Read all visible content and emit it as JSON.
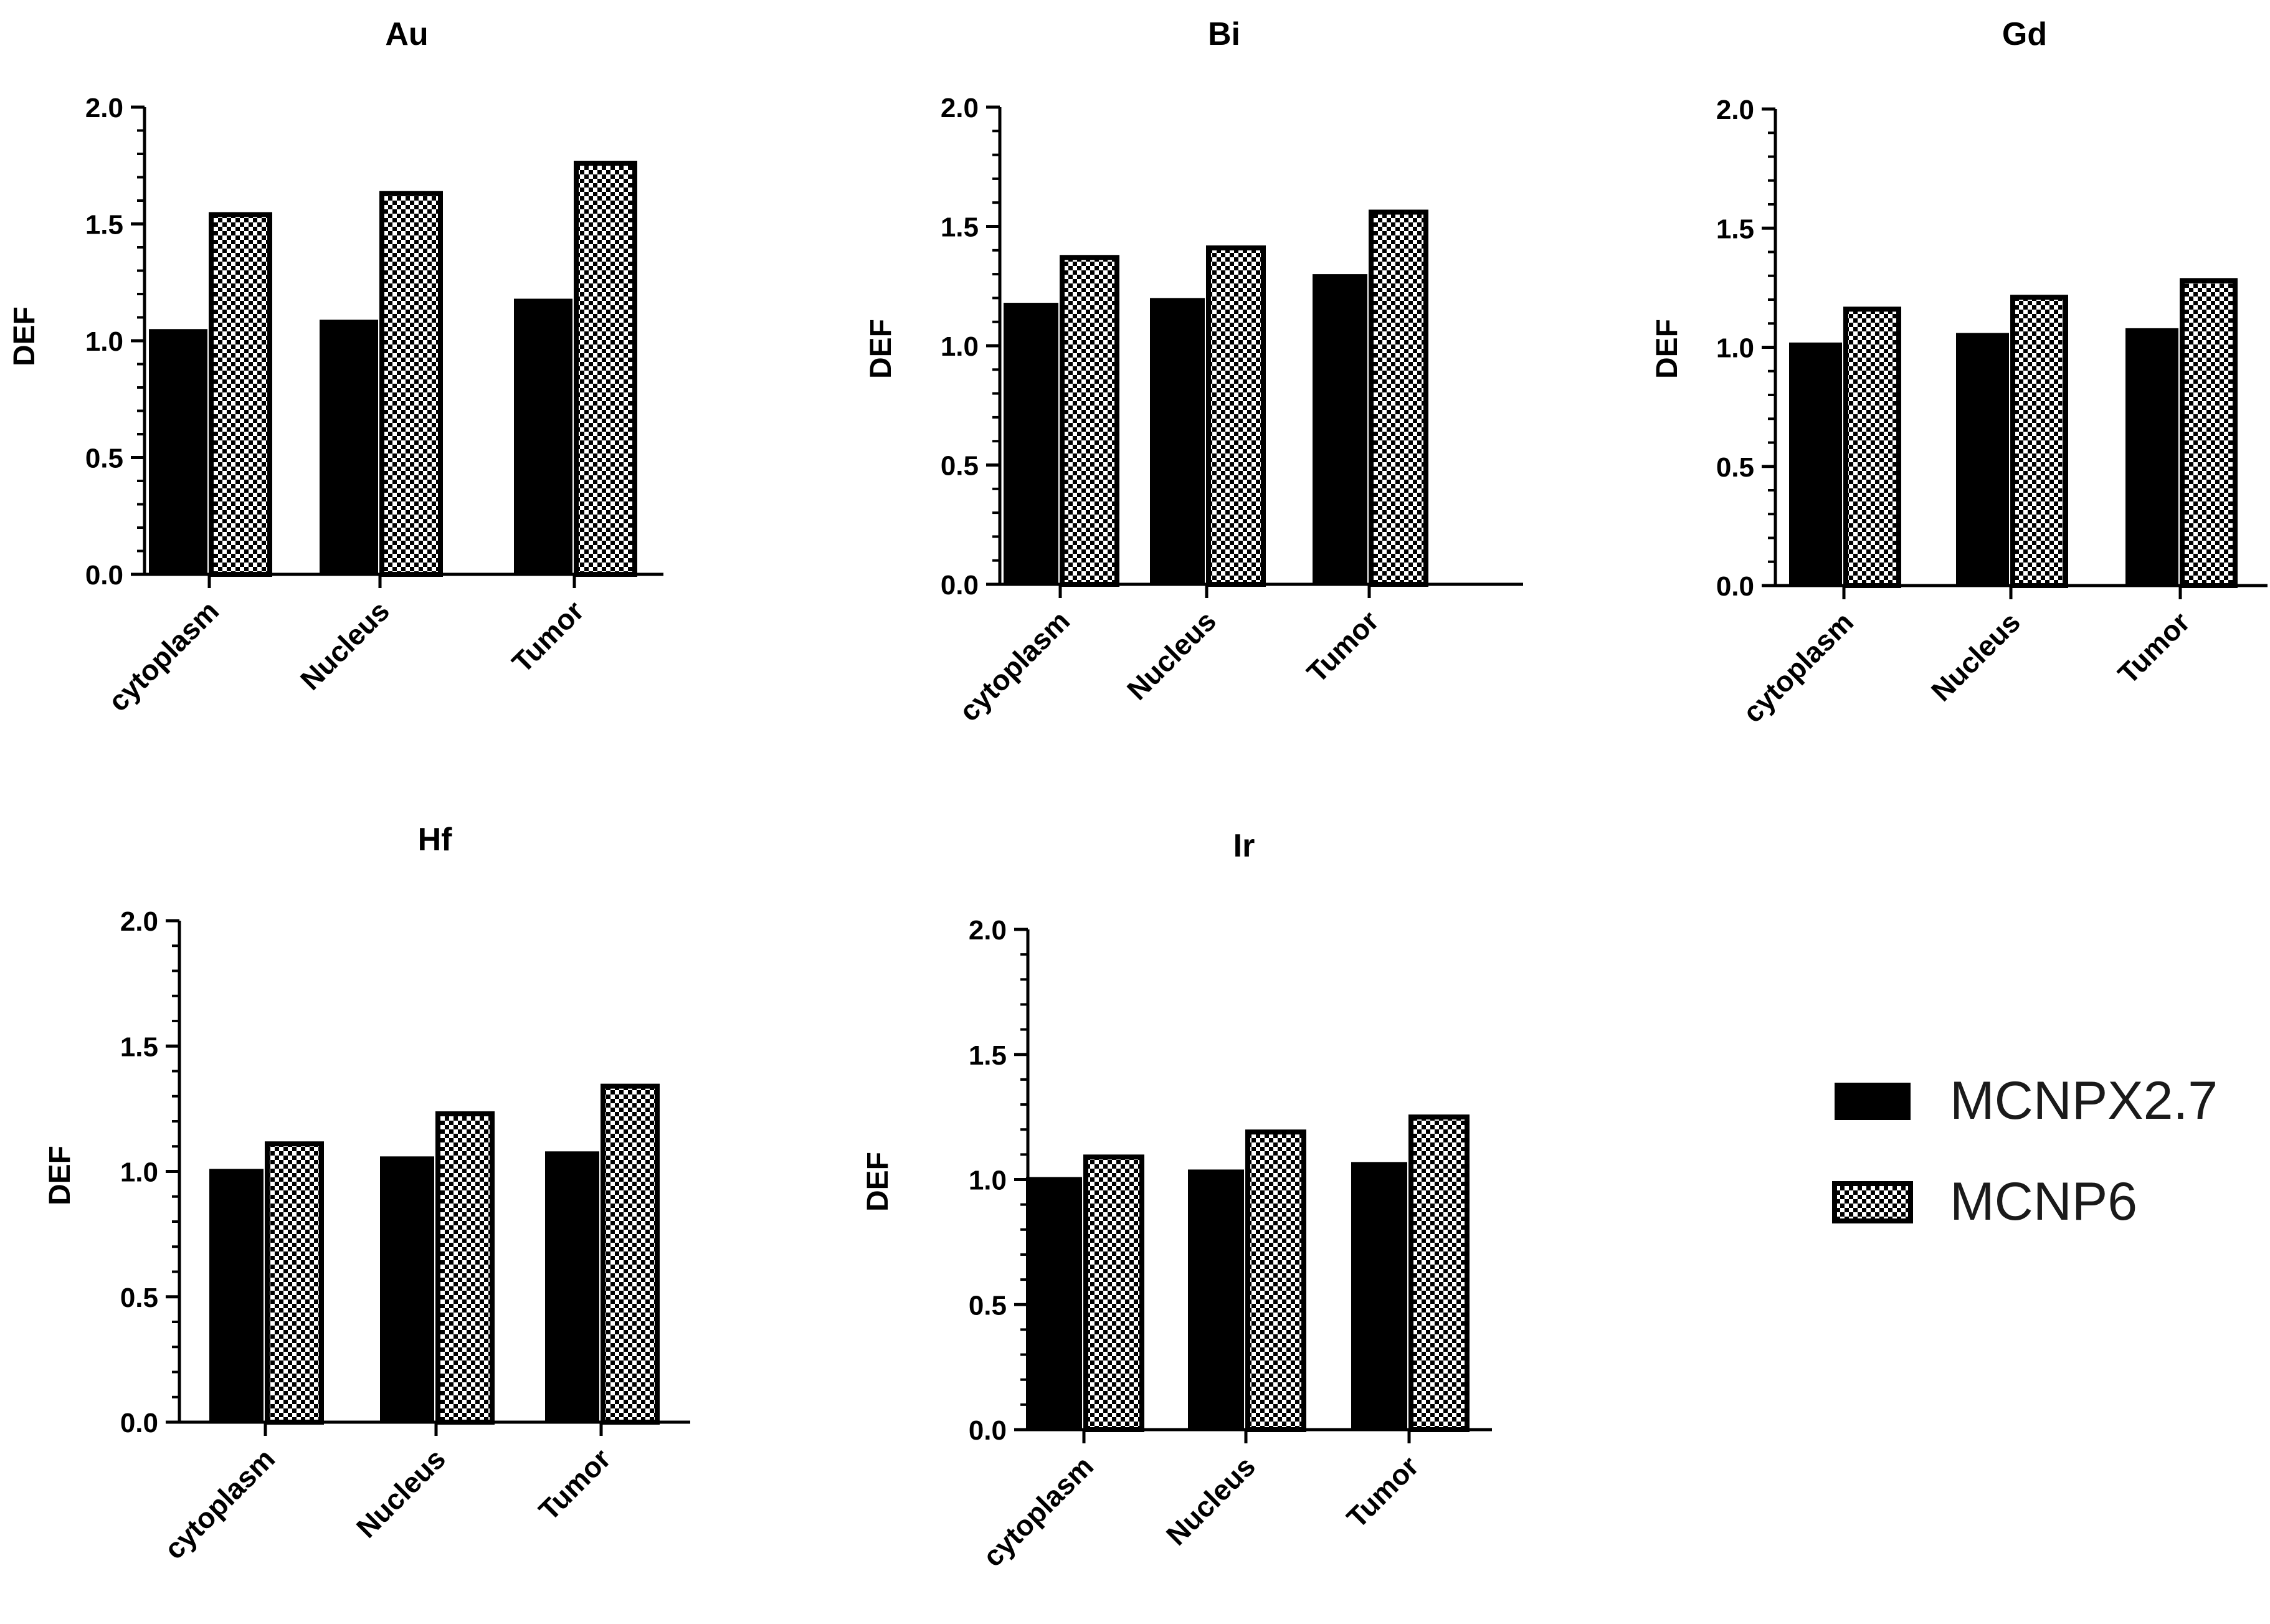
{
  "legend": {
    "series": [
      {
        "name": "MCNPX2.7",
        "style": "solid",
        "color": "#000000"
      },
      {
        "name": "MCNP6",
        "style": "checker",
        "color": "#000000"
      }
    ]
  },
  "chart_data": [
    {
      "type": "bar",
      "title": "Au",
      "xlabel": "",
      "ylabel": "DEF",
      "ylim": [
        0,
        2.0
      ],
      "yticks": [
        "0.0",
        "0.5",
        "1.0",
        "1.5",
        "2.0"
      ],
      "categories": [
        "cytoplasm",
        "Nucleus",
        "Tumor"
      ],
      "series": [
        {
          "name": "MCNPX2.7",
          "values": [
            1.05,
            1.09,
            1.18
          ]
        },
        {
          "name": "MCNP6",
          "values": [
            1.54,
            1.63,
            1.76
          ]
        }
      ]
    },
    {
      "type": "bar",
      "title": "Bi",
      "xlabel": "",
      "ylabel": "DEF",
      "ylim": [
        0,
        2.0
      ],
      "yticks": [
        "0.0",
        "0.5",
        "1.0",
        "1.5",
        "2.0"
      ],
      "categories": [
        "cytoplasm",
        "Nucleus",
        "Tumor"
      ],
      "series": [
        {
          "name": "MCNPX2.7",
          "values": [
            1.18,
            1.2,
            1.3
          ]
        },
        {
          "name": "MCNP6",
          "values": [
            1.37,
            1.41,
            1.56
          ]
        }
      ]
    },
    {
      "type": "bar",
      "title": "Gd",
      "xlabel": "",
      "ylabel": "DEF",
      "ylim": [
        0,
        2.0
      ],
      "yticks": [
        "0.0",
        "0.5",
        "1.0",
        "1.5",
        "2.0"
      ],
      "categories": [
        "cytoplasm",
        "Nucleus",
        "Tumor"
      ],
      "series": [
        {
          "name": "MCNPX2.7",
          "values": [
            1.02,
            1.06,
            1.08
          ]
        },
        {
          "name": "MCNP6",
          "values": [
            1.16,
            1.21,
            1.28
          ]
        }
      ]
    },
    {
      "type": "bar",
      "title": "Hf",
      "xlabel": "",
      "ylabel": "DEF",
      "ylim": [
        0,
        2.0
      ],
      "yticks": [
        "0.0",
        "0.5",
        "1.0",
        "1.5",
        "2.0"
      ],
      "categories": [
        "cytoplasm",
        "Nucleus",
        "Tumor"
      ],
      "series": [
        {
          "name": "MCNPX2.7",
          "values": [
            1.01,
            1.06,
            1.08
          ]
        },
        {
          "name": "MCNP6",
          "values": [
            1.11,
            1.23,
            1.34
          ]
        }
      ]
    },
    {
      "type": "bar",
      "title": "Ir",
      "xlabel": "",
      "ylabel": "DEF",
      "ylim": [
        0,
        2.0
      ],
      "yticks": [
        "0.0",
        "0.5",
        "1.0",
        "1.5",
        "2.0"
      ],
      "categories": [
        "cytoplasm",
        "Nucleus",
        "Tumor"
      ],
      "series": [
        {
          "name": "MCNPX2.7",
          "values": [
            1.01,
            1.04,
            1.07
          ]
        },
        {
          "name": "MCNP6",
          "values": [
            1.09,
            1.19,
            1.25
          ]
        }
      ]
    }
  ]
}
